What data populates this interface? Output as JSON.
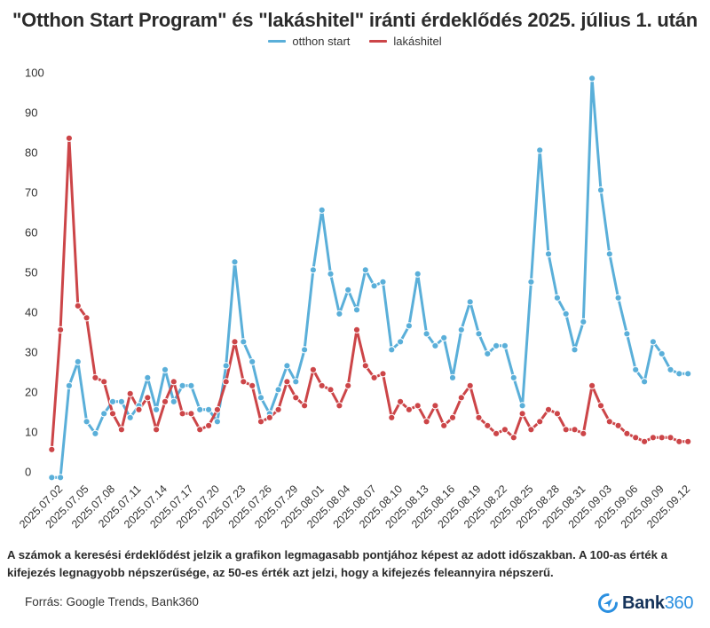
{
  "chart_data": {
    "type": "line",
    "title": "\"Otthon Start Program\" és \"lakáshitel\" iránti érdeklődés 2025. július 1. után",
    "xlabel": "",
    "ylabel": "",
    "ylim": [
      0,
      100
    ],
    "yticks": [
      0,
      10,
      20,
      30,
      40,
      50,
      60,
      70,
      80,
      90,
      100
    ],
    "grid": false,
    "legend_position": "top-center",
    "x_start": "2025.07.01",
    "x_end": "2025.09.12",
    "x_tick_labels": [
      "2025.07.02",
      "2025.07.05",
      "2025.07.08",
      "2025.07.11",
      "2025.07.14",
      "2025.07.17",
      "2025.07.20",
      "2025.07.23",
      "2025.07.26",
      "2025.07.29",
      "2025.08.01",
      "2025.08.04",
      "2025.08.07",
      "2025.08.10",
      "2025.08.13",
      "2025.08.16",
      "2025.08.19",
      "2025.08.22",
      "2025.08.25",
      "2025.08.28",
      "2025.08.31",
      "2025.09.03",
      "2025.09.06",
      "2025.09.09",
      "2025.09.12"
    ],
    "series": [
      {
        "name": "otthon start",
        "color": "#5aafd9",
        "values": [
          0,
          0,
          23,
          29,
          14,
          11,
          16,
          19,
          19,
          15,
          18,
          25,
          17,
          27,
          19,
          23,
          23,
          17,
          17,
          14,
          28,
          54,
          34,
          29,
          20,
          16,
          22,
          28,
          24,
          32,
          52,
          67,
          51,
          41,
          47,
          42,
          52,
          48,
          49,
          32,
          34,
          38,
          51,
          36,
          33,
          35,
          25,
          37,
          44,
          36,
          31,
          33,
          33,
          25,
          18,
          49,
          82,
          56,
          45,
          41,
          32,
          39,
          100,
          72,
          56,
          45,
          36,
          27,
          24,
          34,
          31,
          27,
          26,
          26
        ]
      },
      {
        "name": "lakáshitel",
        "color": "#cc4548",
        "values": [
          7,
          37,
          85,
          43,
          40,
          25,
          24,
          16,
          12,
          21,
          17,
          20,
          12,
          19,
          24,
          16,
          16,
          12,
          13,
          17,
          24,
          34,
          24,
          23,
          14,
          15,
          17,
          24,
          20,
          18,
          27,
          23,
          22,
          18,
          23,
          37,
          28,
          25,
          26,
          15,
          19,
          17,
          18,
          14,
          18,
          13,
          15,
          20,
          23,
          15,
          13,
          11,
          12,
          10,
          16,
          12,
          14,
          17,
          16,
          12,
          12,
          11,
          23,
          18,
          14,
          13,
          11,
          10,
          9,
          10,
          10,
          10,
          9,
          9
        ]
      }
    ]
  },
  "footnote": "A számok a keresési érdeklődést jelzik a grafikon legmagasabb pontjához képest az adott időszakban. A 100-as érték a kifejezés legnagyobb népszerűsége, az 50-es érték azt jelzi, hogy a kifejezés feleannyira népszerű.",
  "source": "Forrás: Google Trends, Bank360",
  "logo": {
    "icon": "navigation-arrow-circle-icon",
    "text_main": "Bank",
    "text_num": "360"
  }
}
